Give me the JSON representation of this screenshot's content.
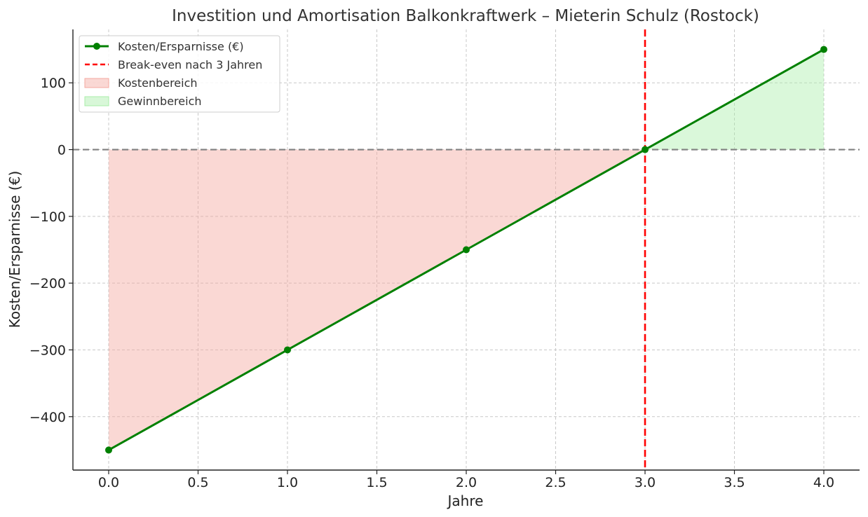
{
  "chart_data": {
    "type": "line",
    "title": "Investition und Amortisation Balkonkraftwerk – Mieterin Schulz (Rostock)",
    "xlabel": "Jahre",
    "ylabel": "Kosten/Ersparnisse (€)",
    "xlim": [
      -0.2,
      4.2
    ],
    "ylim": [
      -480,
      180
    ],
    "x_ticks": [
      0.0,
      0.5,
      1.0,
      1.5,
      2.0,
      2.5,
      3.0,
      3.5,
      4.0
    ],
    "x_tick_labels": [
      "0.0",
      "0.5",
      "1.0",
      "1.5",
      "2.0",
      "2.5",
      "3.0",
      "3.5",
      "4.0"
    ],
    "y_ticks": [
      -400,
      -300,
      -200,
      -100,
      0,
      100
    ],
    "y_tick_labels": [
      "−400",
      "−300",
      "−200",
      "−100",
      "0",
      "100"
    ],
    "grid": true,
    "legend_position": "top-left",
    "series": [
      {
        "name": "Kosten/Ersparnisse (€)",
        "x": [
          0,
          1,
          2,
          3,
          4
        ],
        "values": [
          -450,
          -300,
          -150,
          0,
          150
        ],
        "color": "#008000",
        "marker": "circle"
      }
    ],
    "reference_lines": [
      {
        "name": "Break-even nach 3 Jahren",
        "orientation": "vertical",
        "x": 3,
        "color": "#ff0000",
        "style": "dashed"
      },
      {
        "orientation": "horizontal",
        "y": 0,
        "color": "#808080",
        "style": "dashed"
      }
    ],
    "fill_areas": [
      {
        "name": "Kostenbereich",
        "x_range": [
          0,
          3
        ],
        "color": "#f4a9a0"
      },
      {
        "name": "Gewinnbereich",
        "x_range": [
          3,
          4
        ],
        "color": "#a8eea8"
      }
    ]
  }
}
